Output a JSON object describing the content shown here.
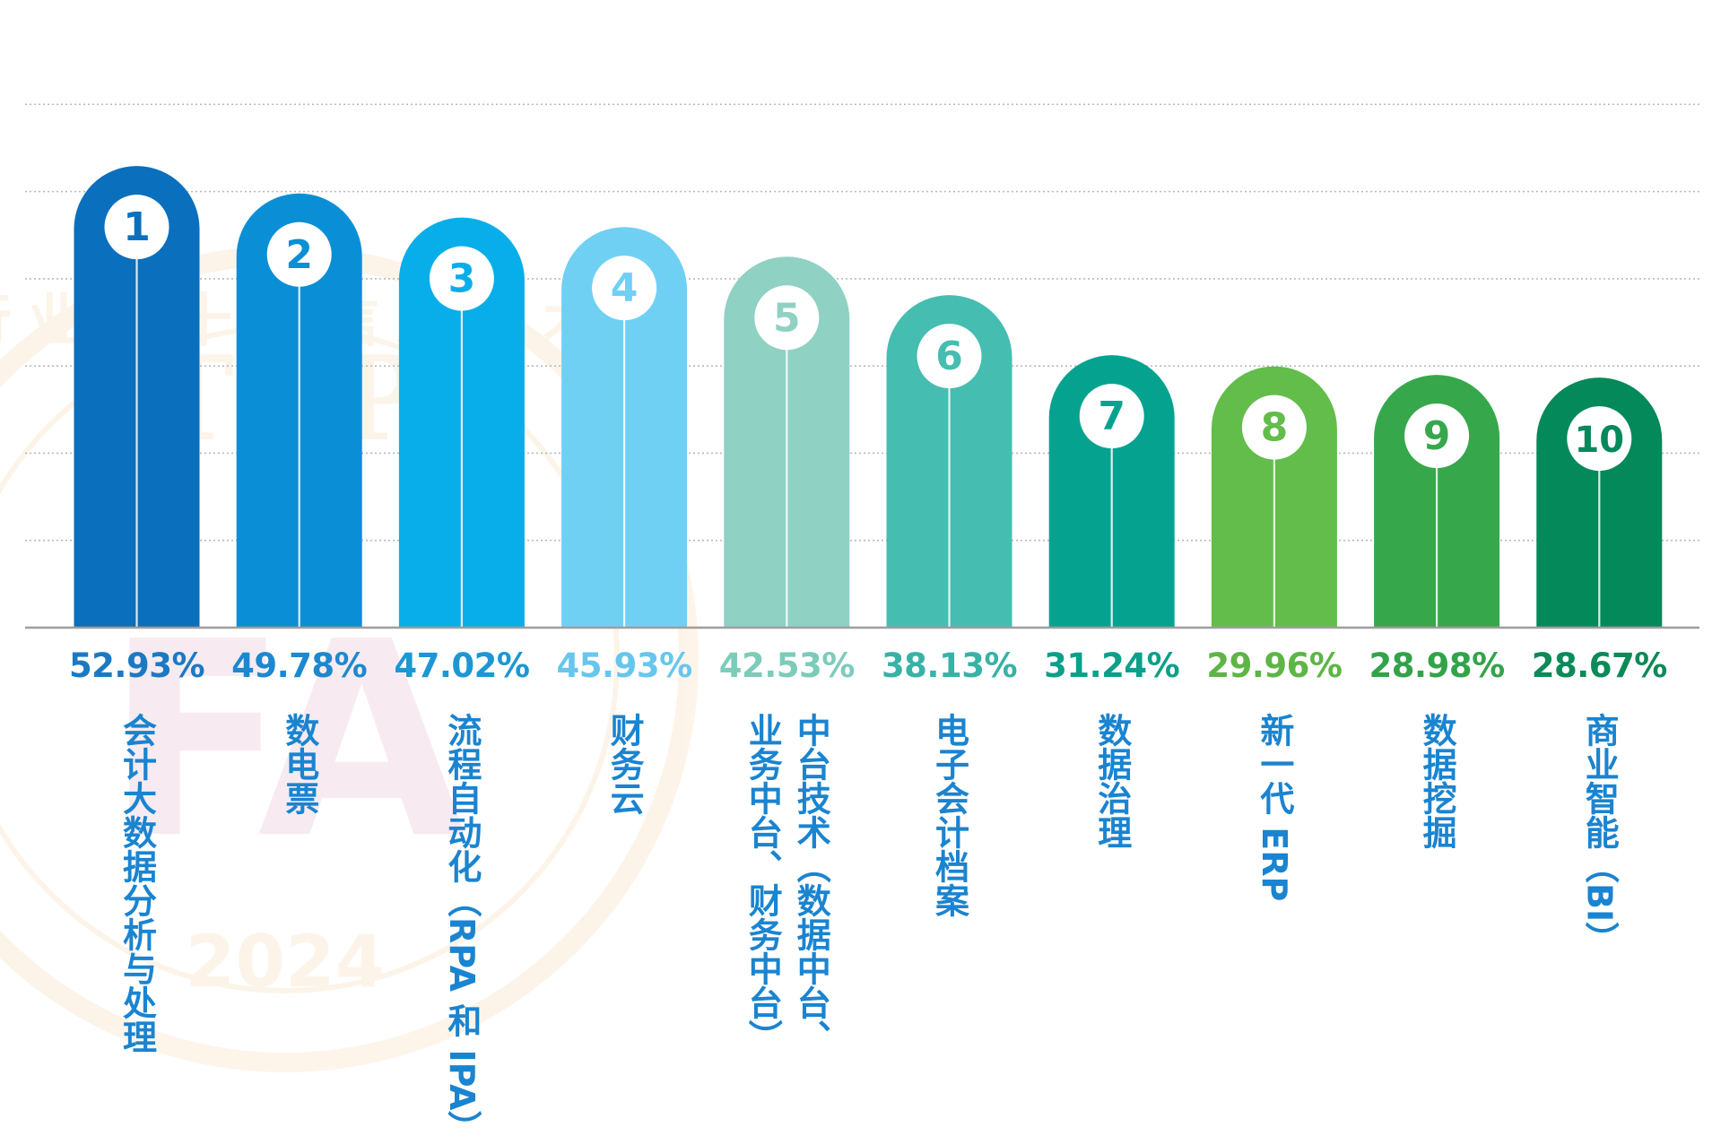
{
  "chart_data": {
    "type": "bar",
    "title": "",
    "xlabel": "",
    "ylabel": "",
    "ylim": [
      0,
      66
    ],
    "grid": true,
    "legend": "none",
    "watermark": [
      "行业的十大信息技术",
      "TOP",
      "FA",
      "2024"
    ],
    "bars": [
      {
        "rank": "1",
        "value": 52.93,
        "value_label": "52.93%",
        "category": [
          "会计大数据分析与处理"
        ],
        "color": "#0a6fbd",
        "label_color": "#1b79c4"
      },
      {
        "rank": "2",
        "value": 49.78,
        "value_label": "49.78%",
        "category": [
          "数电票"
        ],
        "color": "#0a8fd6",
        "label_color": "#1d88cf"
      },
      {
        "rank": "3",
        "value": 47.02,
        "value_label": "47.02%",
        "category": [
          "流程自动化（RPA 和 IPA）"
        ],
        "color": "#07aeea",
        "label_color": "#1c97d4"
      },
      {
        "rank": "4",
        "value": 45.93,
        "value_label": "45.93%",
        "category": [
          "财务云"
        ],
        "color": "#6fd0f4",
        "label_color": "#68c6ec"
      },
      {
        "rank": "5",
        "value": 42.53,
        "value_label": "42.53%",
        "category": [
          "中台技术（数据中台、",
          "业务中台、财务中台）"
        ],
        "color": "#8fd1c3",
        "label_color": "#7dcbbb"
      },
      {
        "rank": "6",
        "value": 38.13,
        "value_label": "38.13%",
        "category": [
          "电子会计档案"
        ],
        "color": "#45bdb1",
        "label_color": "#38b2a6"
      },
      {
        "rank": "7",
        "value": 31.24,
        "value_label": "31.24%",
        "category": [
          "数据治理"
        ],
        "color": "#05a38f",
        "label_color": "#0c9f8a"
      },
      {
        "rank": "8",
        "value": 29.96,
        "value_label": "29.96%",
        "category": [
          "新一代 ERP"
        ],
        "color": "#62bd4a",
        "label_color": "#5db545"
      },
      {
        "rank": "9",
        "value": 28.98,
        "value_label": "28.98%",
        "category": [
          "数据挖掘"
        ],
        "color": "#37a74c",
        "label_color": "#33a34a"
      },
      {
        "rank": "10",
        "value": 28.67,
        "value_label": "28.67%",
        "category": [
          "商业智能（BI）"
        ],
        "color": "#04895a",
        "label_color": "#0c8a58"
      }
    ]
  }
}
